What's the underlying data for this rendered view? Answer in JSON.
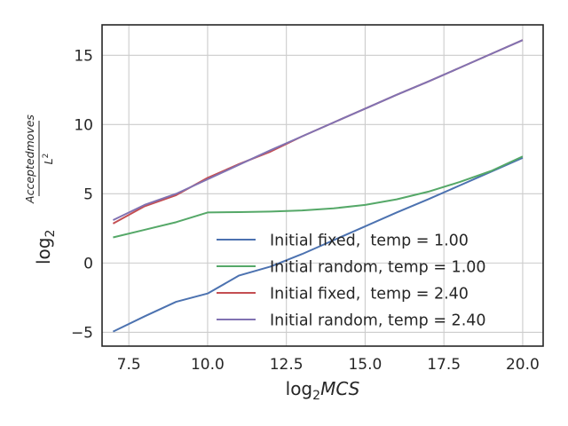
{
  "chart_data": {
    "type": "line",
    "xlabel": {
      "base": "log",
      "subscript": "2",
      "var": "MCS"
    },
    "ylabel": {
      "base": "log",
      "subscript": "2",
      "numerator": "Acceptedmoves",
      "denominator": "L",
      "denominator_exp": "2"
    },
    "xlim": [
      6.65,
      20.65
    ],
    "ylim": [
      -6.0,
      17.2
    ],
    "xticks": [
      7.5,
      10.0,
      12.5,
      15.0,
      17.5,
      20.0
    ],
    "xtick_labels": [
      "7.5",
      "10.0",
      "12.5",
      "15.0",
      "17.5",
      "20.0"
    ],
    "yticks": [
      -5,
      0,
      5,
      10,
      15
    ],
    "ytick_labels": [
      "−5",
      "0",
      "5",
      "10",
      "15"
    ],
    "grid": true,
    "legend_position": "lower-right",
    "series": [
      {
        "name": "Initial fixed,  temp = 1.00",
        "color": "#4c72b0",
        "x": [
          7,
          8,
          9,
          10,
          11,
          12,
          13,
          14,
          15,
          16,
          17,
          18,
          19,
          20
        ],
        "y": [
          -4.95,
          -3.85,
          -2.8,
          -2.2,
          -0.9,
          -0.25,
          0.65,
          1.65,
          2.65,
          3.65,
          4.6,
          5.6,
          6.6,
          7.6
        ]
      },
      {
        "name": "Initial random, temp = 1.00",
        "color": "#55a868",
        "x": [
          7,
          8,
          9,
          10,
          11,
          12,
          13,
          14,
          15,
          16,
          17,
          18,
          19,
          20
        ],
        "y": [
          1.85,
          2.4,
          2.95,
          3.65,
          3.68,
          3.72,
          3.8,
          3.95,
          4.2,
          4.6,
          5.15,
          5.85,
          6.65,
          7.7
        ]
      },
      {
        "name": "Initial fixed,  temp = 2.40",
        "color": "#c44e52",
        "x": [
          7,
          8,
          9,
          10,
          11,
          12,
          13,
          14,
          15,
          16,
          17,
          18,
          19,
          20
        ],
        "y": [
          2.85,
          4.1,
          4.9,
          6.15,
          7.15,
          8.05,
          9.15,
          10.15,
          11.15,
          12.15,
          13.1,
          14.1,
          15.1,
          16.1
        ]
      },
      {
        "name": "Initial random, temp = 2.40",
        "color": "#8172b2",
        "x": [
          7,
          8,
          9,
          10,
          11,
          12,
          13,
          14,
          15,
          16,
          17,
          18,
          19,
          20
        ],
        "y": [
          3.1,
          4.2,
          5.0,
          6.05,
          7.1,
          8.15,
          9.15,
          10.15,
          11.15,
          12.15,
          13.1,
          14.1,
          15.1,
          16.1
        ]
      }
    ]
  }
}
